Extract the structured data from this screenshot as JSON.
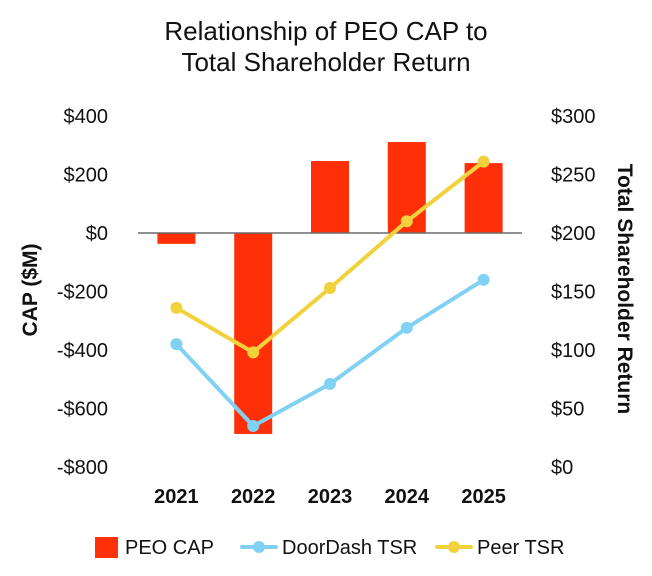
{
  "chart_data": {
    "type": "bar",
    "title": "Relationship of PEO CAP to\nTotal Shareholder Return",
    "categories": [
      "2021",
      "2022",
      "2023",
      "2024",
      "2025"
    ],
    "series": [
      {
        "name": "PEO CAP",
        "type": "bar",
        "axis": "left",
        "color": "#FF3008",
        "values": [
          -37,
          -687,
          246,
          311,
          239
        ]
      },
      {
        "name": "DoorDash TSR",
        "type": "line",
        "axis": "right",
        "color": "#80D1F4",
        "values": [
          105,
          35,
          71,
          119,
          160
        ]
      },
      {
        "name": "Peer TSR",
        "type": "line",
        "axis": "right",
        "color": "#F1D23C",
        "values": [
          136,
          98,
          153,
          210,
          261
        ]
      }
    ],
    "y_left": {
      "label": "CAP ($M)",
      "range": [
        -800,
        400
      ],
      "ticks": [
        {
          "value": 400,
          "label": "$400"
        },
        {
          "value": 200,
          "label": "$200"
        },
        {
          "value": 0,
          "label": "$0"
        },
        {
          "value": -200,
          "label": "-$200"
        },
        {
          "value": -400,
          "label": "-$400"
        },
        {
          "value": -600,
          "label": "-$600"
        },
        {
          "value": -800,
          "label": "-$800"
        }
      ]
    },
    "y_right": {
      "label": "Total Shareholder Return",
      "range": [
        0,
        300
      ],
      "ticks": [
        {
          "value": 300,
          "label": "$300"
        },
        {
          "value": 250,
          "label": "$250"
        },
        {
          "value": 200,
          "label": "$200"
        },
        {
          "value": 150,
          "label": "$150"
        },
        {
          "value": 100,
          "label": "$100"
        },
        {
          "value": 50,
          "label": "$50"
        },
        {
          "value": 0,
          "label": "$0"
        }
      ]
    },
    "grid": false,
    "legend": "bottom"
  }
}
